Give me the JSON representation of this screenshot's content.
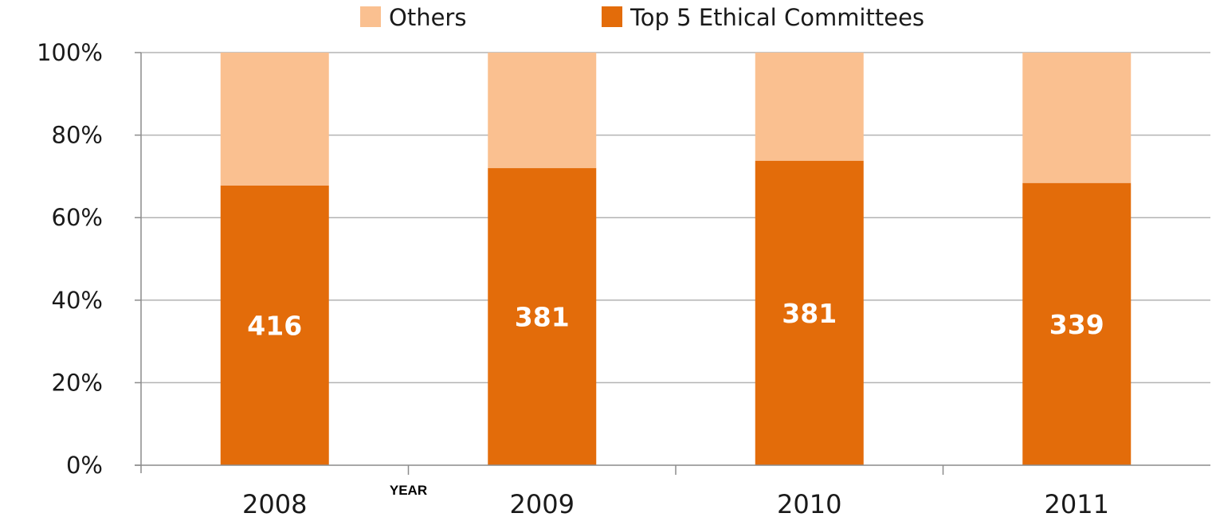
{
  "chart_data": {
    "type": "bar",
    "stacked": true,
    "normalized": true,
    "categories": [
      "2008",
      "2009",
      "2010",
      "2011"
    ],
    "series": [
      {
        "name": "Top 5 Ethical Committees",
        "values": [
          67.8,
          72.0,
          73.8,
          68.4
        ],
        "labels": [
          "416",
          "381",
          "381",
          "339"
        ],
        "color": "#e36c0a"
      },
      {
        "name": "Others",
        "values": [
          32.2,
          28.0,
          26.2,
          31.6
        ],
        "color": "#fac090"
      }
    ],
    "legend_order": [
      "Others",
      "Top 5 Ethical Committees"
    ],
    "title": "",
    "xlabel": "YEAR",
    "ylabel": "",
    "ylim": [
      0,
      100
    ],
    "yticks": [
      "0%",
      "20%",
      "40%",
      "60%",
      "80%",
      "100%"
    ],
    "ytick_values": [
      0,
      20,
      40,
      60,
      80,
      100
    ],
    "grid": true,
    "legend_position": "top-center"
  },
  "colors": {
    "grid": "#b3b3b3",
    "axis": "#8c8c8c"
  }
}
